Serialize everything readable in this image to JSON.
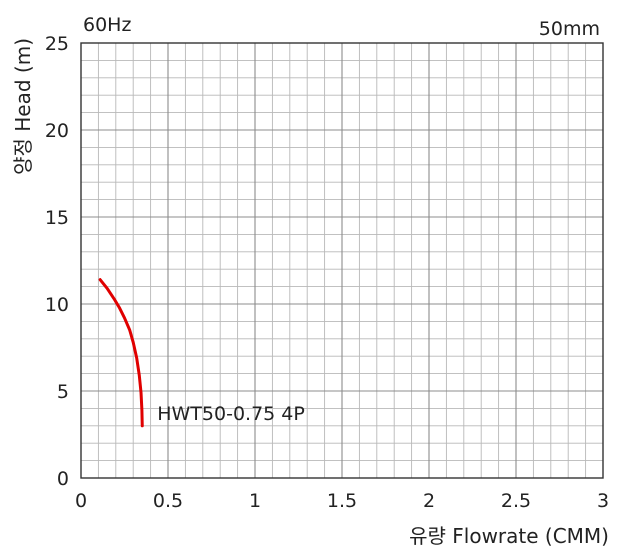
{
  "chart_data": {
    "type": "line",
    "title": "",
    "frequency_label": "60Hz",
    "size_label": "50mm",
    "xlabel": "유량 Flowrate (CMM)",
    "ylabel": "양정 Head (m)",
    "xlim": [
      0,
      3
    ],
    "ylim": [
      0,
      25
    ],
    "x_ticks": [
      0,
      0.5,
      1,
      1.5,
      2,
      2.5,
      3
    ],
    "x_tick_labels": [
      "0",
      "0.5",
      "1",
      "1.5",
      "2",
      "2.5",
      "3"
    ],
    "y_ticks": [
      0,
      5,
      10,
      15,
      20,
      25
    ],
    "y_tick_labels": [
      "0",
      "5",
      "10",
      "15",
      "20",
      "25"
    ],
    "x_minor_step": 0.1,
    "y_minor_step": 1,
    "grid": true,
    "series": [
      {
        "label": "HWT50-0.75 4P",
        "color": "#e00000",
        "x": [
          0.11,
          0.15,
          0.19,
          0.22,
          0.25,
          0.28,
          0.3,
          0.32,
          0.335,
          0.345,
          0.35,
          0.352
        ],
        "y": [
          11.4,
          10.9,
          10.3,
          9.8,
          9.2,
          8.5,
          7.8,
          6.9,
          5.9,
          4.9,
          3.9,
          3.0
        ]
      }
    ]
  }
}
